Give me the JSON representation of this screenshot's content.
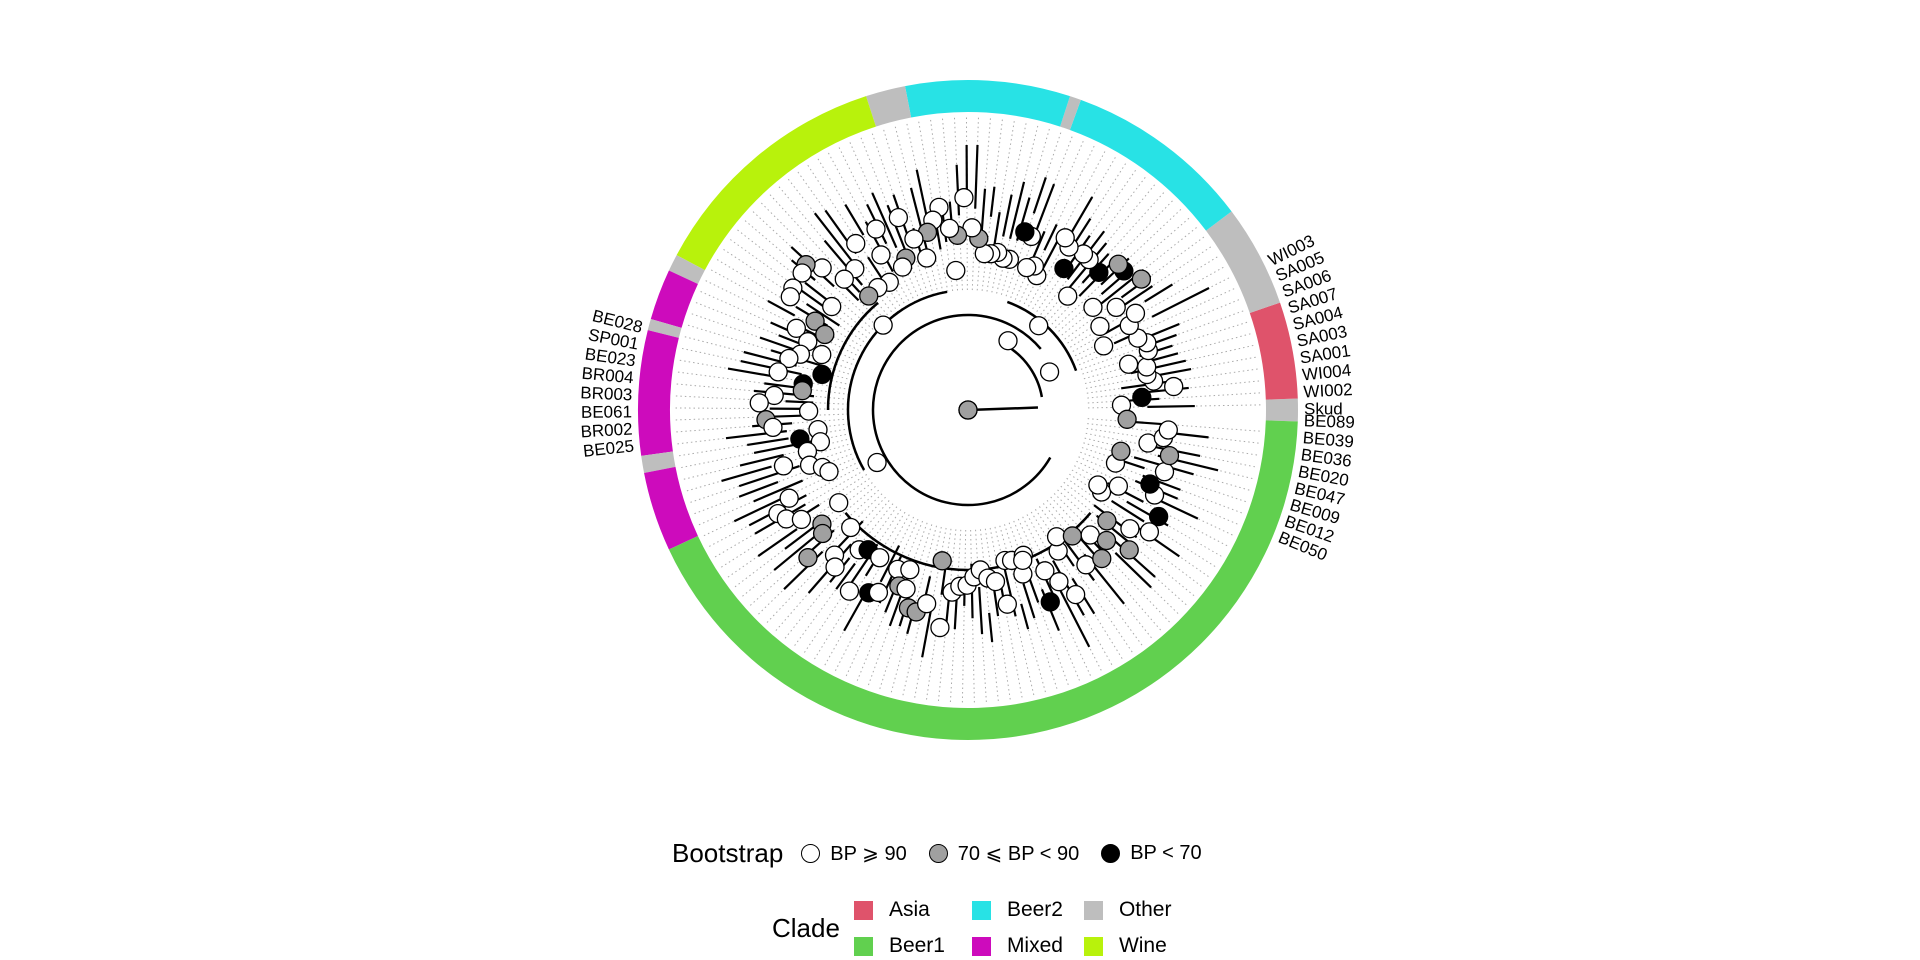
{
  "figure": {
    "tip_labels": {
      "top_visible": [
        "Skud",
        "WI002",
        "WI004",
        "SA001",
        "SA003",
        "SA004",
        "SA007",
        "SA006",
        "SA005",
        "WI003"
      ],
      "bottom_visible": [
        "BE089",
        "BE039",
        "BE036",
        "BE020",
        "BE047",
        "BE009",
        "BE012",
        "BE050"
      ],
      "left_visible": [
        "BE028",
        "SP001",
        "BE023",
        "BR004",
        "BR003",
        "BE061",
        "BR002",
        "BE025"
      ]
    }
  },
  "legend": {
    "bootstrap": {
      "title": "Bootstrap",
      "items": [
        {
          "label": "BP ⩾ 90",
          "fill": "#ffffff"
        },
        {
          "label": "70 ⩽ BP < 90",
          "fill": "#a0a0a0"
        },
        {
          "label": "BP < 70",
          "fill": "#000000"
        }
      ]
    },
    "clade": {
      "title": "Clade",
      "items": [
        {
          "label": "Asia",
          "color": "#df536b"
        },
        {
          "label": "Beer2",
          "color": "#28e2e5"
        },
        {
          "label": "Other",
          "color": "#bebebe"
        },
        {
          "label": "Beer1",
          "color": "#61d04f"
        },
        {
          "label": "Mixed",
          "color": "#cd0bbc"
        },
        {
          "label": "Wine",
          "color": "#b8f20c"
        }
      ]
    }
  },
  "ring_segments": [
    {
      "clade": "Other",
      "from": -2,
      "to": 2
    },
    {
      "clade": "Asia",
      "from": 2,
      "to": 19
    },
    {
      "clade": "Other",
      "from": 19,
      "to": 37
    },
    {
      "clade": "Beer2",
      "from": 37,
      "to": 70
    },
    {
      "clade": "Other",
      "from": 70,
      "to": 72
    },
    {
      "clade": "Beer2",
      "from": 72,
      "to": 101
    },
    {
      "clade": "Other",
      "from": 101,
      "to": 108
    },
    {
      "clade": "Wine",
      "from": 108,
      "to": 152
    },
    {
      "clade": "Other",
      "from": 152,
      "to": 155
    },
    {
      "clade": "Mixed",
      "from": 155,
      "to": 164
    },
    {
      "clade": "Other",
      "from": 164,
      "to": 166
    },
    {
      "clade": "Mixed",
      "from": 166,
      "to": 188
    },
    {
      "clade": "Other",
      "from": 188,
      "to": 191
    },
    {
      "clade": "Mixed",
      "from": 191,
      "to": 205
    },
    {
      "clade": "Beer1",
      "from": 205,
      "to": 358
    }
  ]
}
